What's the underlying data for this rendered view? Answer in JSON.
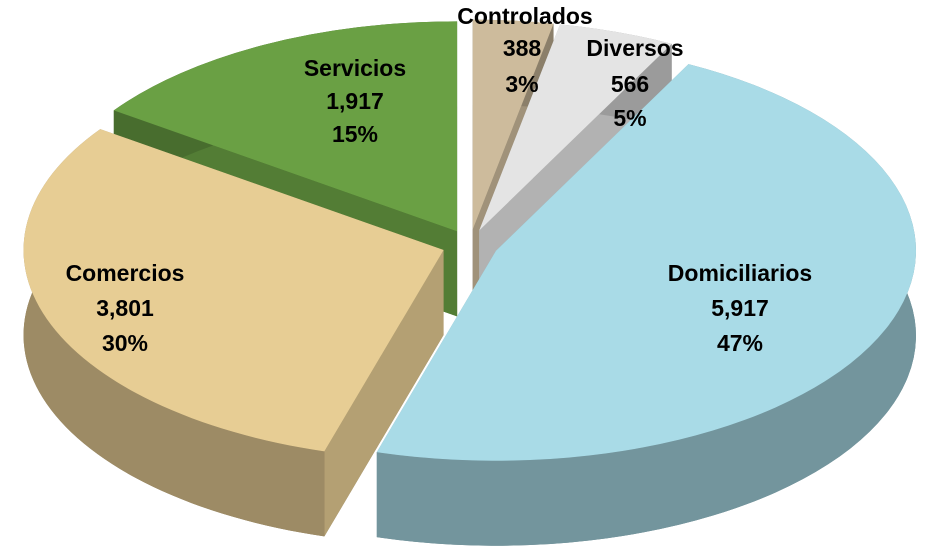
{
  "chart_data": {
    "type": "pie3d",
    "categories": [
      "Controlados",
      "Diversos",
      "Domiciliarios",
      "Comercios",
      "Servicios"
    ],
    "values": [
      388,
      566,
      5917,
      3801,
      1917
    ],
    "value_labels": [
      "388",
      "566",
      "5,917",
      "3,801",
      "1,917"
    ],
    "percentages": [
      3,
      5,
      47,
      30,
      15
    ],
    "percent_labels": [
      "3%",
      "5%",
      "47%",
      "30%",
      "15%"
    ],
    "colors": [
      "#cdbb9c",
      "#e4e4e4",
      "#a9dbe7",
      "#e7cd94",
      "#6aa044"
    ]
  }
}
